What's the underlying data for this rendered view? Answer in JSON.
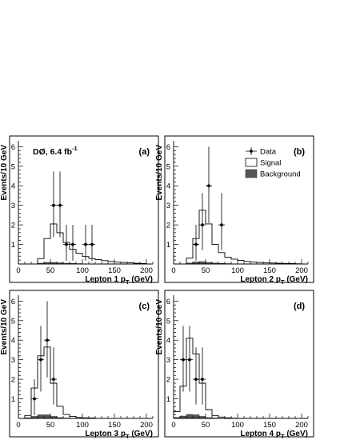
{
  "chart_data": [
    {
      "type": "histogram",
      "panel": "(a)",
      "xlabel": "Lepton 1 p_T (GeV)",
      "xlabel_main": "Lepton 1 p",
      "xlabel_sub": "T",
      "xlabel_unit": " (GeV)",
      "ylabel": "Events/10 GeV",
      "xlim": [
        0,
        210
      ],
      "ylim": [
        0,
        6.3
      ],
      "xticks": [
        0,
        50,
        100,
        150,
        200
      ],
      "yticks": [
        1,
        2,
        3,
        4,
        5,
        6
      ],
      "experiment_label": "DØ, 6.4 fb",
      "experiment_sup": "-1",
      "bin_edges": [
        30,
        40,
        50,
        60,
        70,
        80,
        90,
        100,
        110,
        120,
        130,
        140,
        150,
        160,
        170,
        180,
        190,
        200
      ],
      "signal": [
        0.28,
        1.3,
        2.05,
        1.6,
        1.1,
        0.75,
        0.55,
        0.38,
        0.28,
        0.22,
        0.17,
        0.13,
        0.1,
        0.08,
        0.06,
        0.04,
        0.03
      ],
      "background": [
        0.04,
        0.08,
        0.08,
        0.06,
        0.04,
        0.03,
        0.02,
        0.01,
        0.01,
        0,
        0,
        0,
        0,
        0,
        0,
        0,
        0
      ],
      "data": [
        {
          "x": 55,
          "y": 3,
          "err_low": 1.63,
          "err_high": 1.73
        },
        {
          "x": 65,
          "y": 3,
          "err_low": 1.63,
          "err_high": 1.73
        },
        {
          "x": 75,
          "y": 1,
          "err_low": 0.83,
          "err_high": 1.0
        },
        {
          "x": 85,
          "y": 1,
          "err_low": 0.83,
          "err_high": 1.0
        },
        {
          "x": 105,
          "y": 1,
          "err_low": 0.83,
          "err_high": 1.0
        },
        {
          "x": 115,
          "y": 1,
          "err_low": 0.83,
          "err_high": 1.0
        }
      ]
    },
    {
      "type": "histogram",
      "panel": "(b)",
      "xlabel": "Lepton 2 p_T (GeV)",
      "xlabel_main": "Lepton 2 p",
      "xlabel_sub": "T",
      "xlabel_unit": " (GeV)",
      "ylabel": "Events/10 GeV",
      "xlim": [
        0,
        210
      ],
      "ylim": [
        0,
        6.3
      ],
      "xticks": [
        0,
        50,
        100,
        150,
        200
      ],
      "yticks": [
        1,
        2,
        3,
        4,
        5,
        6
      ],
      "legend": [
        {
          "label": "Data",
          "kind": "data"
        },
        {
          "label": "Signal",
          "kind": "signal"
        },
        {
          "label": "Background",
          "kind": "background"
        }
      ],
      "bin_edges": [
        20,
        30,
        40,
        50,
        60,
        70,
        80,
        90,
        100,
        110,
        120,
        130,
        140,
        150,
        160,
        170,
        180,
        190,
        200
      ],
      "signal": [
        0.3,
        1.3,
        2.75,
        2.05,
        1.0,
        0.58,
        0.35,
        0.25,
        0.18,
        0.13,
        0.1,
        0.08,
        0.06,
        0.05,
        0.04,
        0.03,
        0.02,
        0.01
      ],
      "background": [
        0.05,
        0.1,
        0.12,
        0.08,
        0.05,
        0.03,
        0.02,
        0.01,
        0,
        0,
        0,
        0,
        0,
        0,
        0,
        0,
        0,
        0
      ],
      "data": [
        {
          "x": 35,
          "y": 1,
          "err_low": 0.83,
          "err_high": 1.0
        },
        {
          "x": 45,
          "y": 2,
          "err_low": 1.29,
          "err_high": 1.63
        },
        {
          "x": 55,
          "y": 4,
          "err_low": 1.91,
          "err_high": 2.0
        },
        {
          "x": 75,
          "y": 2,
          "err_low": 1.29,
          "err_high": 1.63
        }
      ]
    },
    {
      "type": "histogram",
      "panel": "(c)",
      "xlabel": "Lepton 3 p_T (GeV)",
      "xlabel_main": "Lepton 3 p",
      "xlabel_sub": "T",
      "xlabel_unit": " (GeV)",
      "ylabel": "Events/10 GeV",
      "xlim": [
        0,
        210
      ],
      "ylim": [
        0,
        6.3
      ],
      "xticks": [
        0,
        50,
        100,
        150,
        200
      ],
      "yticks": [
        1,
        2,
        3,
        4,
        5,
        6
      ],
      "bin_edges": [
        10,
        20,
        30,
        40,
        50,
        60,
        70,
        80,
        90,
        100,
        110,
        120
      ],
      "signal": [
        0.15,
        1.55,
        3.2,
        3.65,
        1.8,
        0.62,
        0.2,
        0.1,
        0.05,
        0.03,
        0.02
      ],
      "background": [
        0.03,
        0.1,
        0.18,
        0.18,
        0.1,
        0.04,
        0.02,
        0.01,
        0,
        0,
        0
      ],
      "data": [
        {
          "x": 25,
          "y": 1,
          "err_low": 0.83,
          "err_high": 1.0
        },
        {
          "x": 35,
          "y": 3,
          "err_low": 1.63,
          "err_high": 1.73
        },
        {
          "x": 45,
          "y": 4,
          "err_low": 1.91,
          "err_high": 2.0
        },
        {
          "x": 55,
          "y": 2,
          "err_low": 1.29,
          "err_high": 1.63
        }
      ]
    },
    {
      "type": "histogram",
      "panel": "(d)",
      "xlabel": "Lepton 4 p_T (GeV)",
      "xlabel_main": "Lepton 4 p",
      "xlabel_sub": "T",
      "xlabel_unit": " (GeV)",
      "ylabel": "Events/10 GeV",
      "xlim": [
        0,
        210
      ],
      "ylim": [
        0,
        6.3
      ],
      "xticks": [
        0,
        50,
        100,
        150,
        200
      ],
      "yticks": [
        1,
        2,
        3,
        4,
        5,
        6
      ],
      "bin_edges": [
        0,
        10,
        20,
        30,
        40,
        50,
        60,
        70,
        80,
        90,
        100
      ],
      "signal": [
        0.35,
        1.65,
        4.1,
        3.3,
        1.8,
        0.45,
        0.15,
        0.07,
        0.03,
        0.01
      ],
      "background": [
        0.05,
        0.12,
        0.2,
        0.18,
        0.1,
        0.04,
        0.02,
        0.01,
        0,
        0
      ],
      "data": [
        {
          "x": 15,
          "y": 3,
          "err_low": 1.63,
          "err_high": 1.73
        },
        {
          "x": 25,
          "y": 3,
          "err_low": 1.63,
          "err_high": 1.73
        },
        {
          "x": 35,
          "y": 2,
          "err_low": 1.29,
          "err_high": 1.63
        },
        {
          "x": 45,
          "y": 2,
          "err_low": 1.29,
          "err_high": 1.63
        }
      ]
    }
  ]
}
